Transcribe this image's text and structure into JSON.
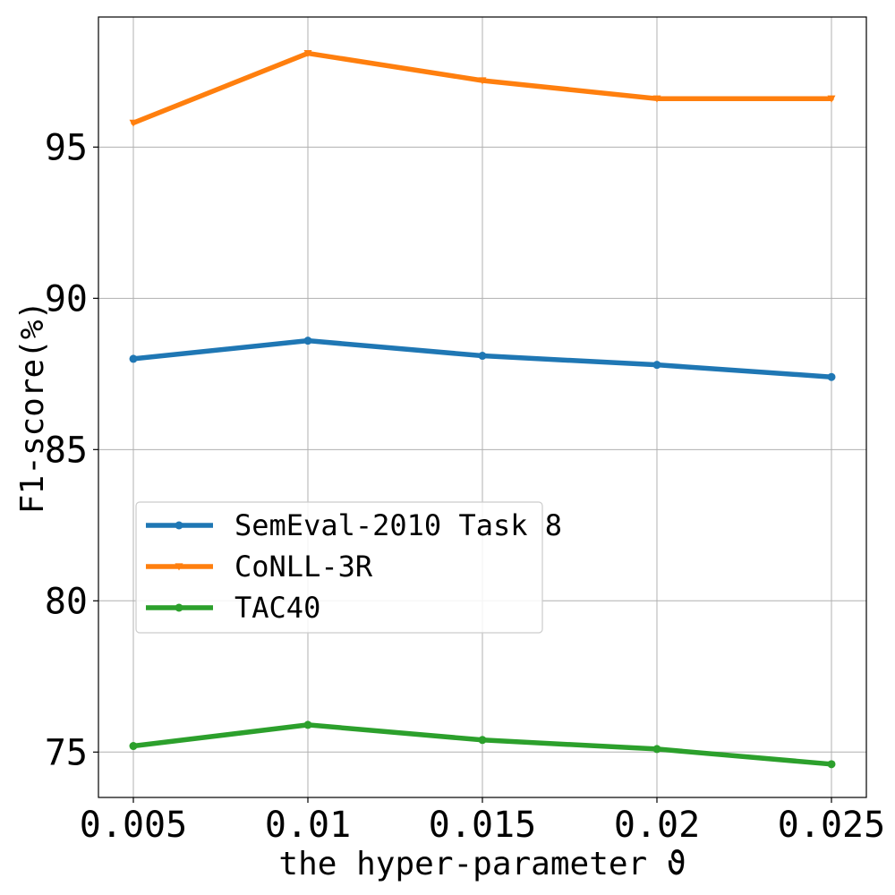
{
  "chart_data": {
    "type": "line",
    "title": "",
    "xlabel": "the hyper-parameter ϑ",
    "ylabel": "F1-score(%)",
    "x": [
      0.005,
      0.01,
      0.015,
      0.02,
      0.025
    ],
    "x_tick_labels": [
      "0.005",
      "0.01",
      "0.015",
      "0.02",
      "0.025"
    ],
    "y_ticks": [
      75,
      80,
      85,
      90,
      95
    ],
    "y_tick_labels": [
      "75",
      "80",
      "85",
      "90",
      "95"
    ],
    "xlim": [
      0.004,
      0.026
    ],
    "ylim": [
      73.5,
      99.3
    ],
    "grid": true,
    "legend_position": "center-left",
    "series": [
      {
        "name": "SemEval-2010 Task 8",
        "color": "#1f77b4",
        "marker": "circle",
        "values": [
          88.0,
          88.6,
          88.1,
          87.8,
          87.4
        ]
      },
      {
        "name": "CoNLL-3R",
        "color": "#ff7f0e",
        "marker": "triangle-down",
        "values": [
          95.8,
          98.1,
          97.2,
          96.6,
          96.6
        ]
      },
      {
        "name": "TAC40",
        "color": "#2ca02c",
        "marker": "circle",
        "values": [
          75.2,
          75.9,
          75.4,
          75.1,
          74.6
        ]
      }
    ]
  }
}
